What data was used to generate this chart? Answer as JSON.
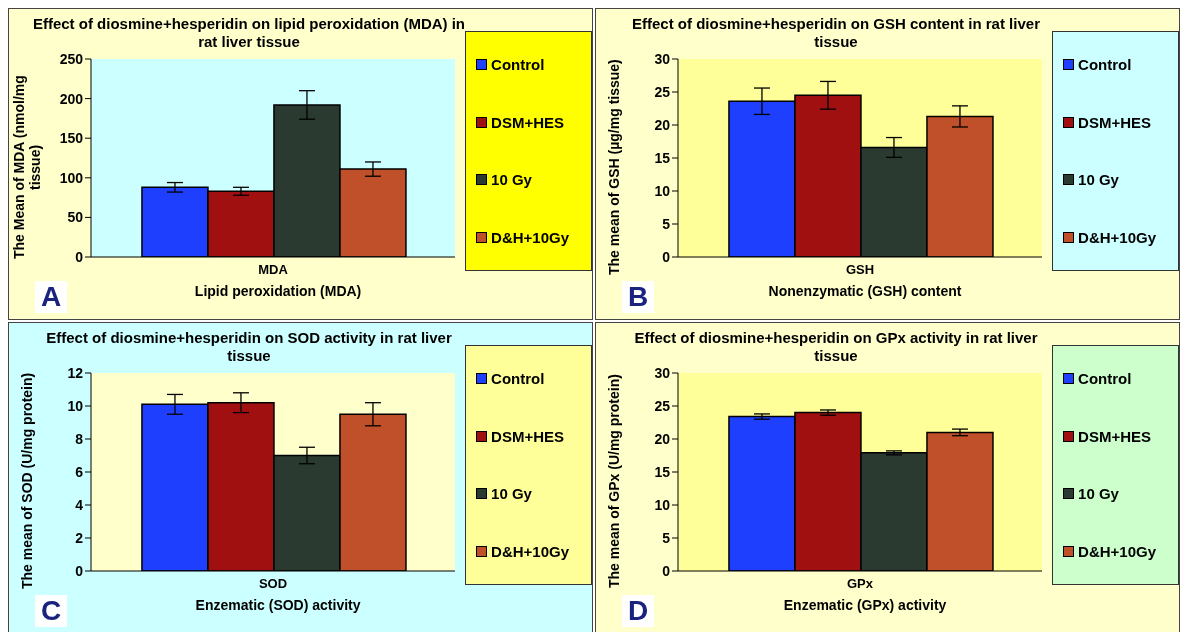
{
  "chart_data": [
    {
      "type": "bar",
      "title": "Effect of diosmine+hesperidin on lipid peroxidation (MDA) in rat liver tissue",
      "xlabel": "Lipid peroxidation (MDA)",
      "ylabel": "The Mean of MDA (nmol/mg tissue)",
      "categories": [
        "MDA"
      ],
      "ylim": [
        0,
        250
      ],
      "yticks": [
        0,
        50,
        100,
        150,
        200,
        250
      ],
      "grid": false,
      "legend": "right",
      "annotations": [
        "A"
      ],
      "series": [
        {
          "name": "Control",
          "color": "#1f3fff",
          "values": [
            88
          ],
          "errors": [
            6
          ]
        },
        {
          "name": "DSM+HES",
          "color": "#a01010",
          "values": [
            83
          ],
          "errors": [
            5
          ]
        },
        {
          "name": "10 Gy",
          "color": "#2b3a30",
          "values": [
            192
          ],
          "errors": [
            18
          ]
        },
        {
          "name": "D&H+10Gy",
          "color": "#c0502a",
          "values": [
            111
          ],
          "errors": [
            9
          ]
        }
      ]
    },
    {
      "type": "bar",
      "title": "Effect of diosmine+hesperidin on GSH content in rat liver tissue",
      "xlabel": "Nonenzymatic (GSH) content",
      "ylabel": "The mean of GSH (µg/mg tissue)",
      "categories": [
        "GSH"
      ],
      "ylim": [
        0,
        30
      ],
      "yticks": [
        0,
        5,
        10,
        15,
        20,
        25,
        30
      ],
      "grid": false,
      "legend": "right",
      "annotations": [
        "B"
      ],
      "series": [
        {
          "name": "Control",
          "color": "#1f3fff",
          "values": [
            23.6
          ],
          "errors": [
            2
          ]
        },
        {
          "name": "DSM+HES",
          "color": "#a01010",
          "values": [
            24.5
          ],
          "errors": [
            2.1
          ]
        },
        {
          "name": "10 Gy",
          "color": "#2b3a30",
          "values": [
            16.6
          ],
          "errors": [
            1.5
          ]
        },
        {
          "name": "D&H+10Gy",
          "color": "#c0502a",
          "values": [
            21.3
          ],
          "errors": [
            1.6
          ]
        }
      ]
    },
    {
      "type": "bar",
      "title": "Effect of diosmine+hesperidin on SOD activity in rat liver tissue",
      "xlabel": "Enzematic (SOD) activity",
      "ylabel": "The mean of SOD (U/mg protein)",
      "categories": [
        "SOD"
      ],
      "ylim": [
        0,
        12
      ],
      "yticks": [
        0,
        2,
        4,
        6,
        8,
        10,
        12
      ],
      "grid": false,
      "legend": "right",
      "annotations": [
        "C"
      ],
      "series": [
        {
          "name": "Control",
          "color": "#1f3fff",
          "values": [
            10.1
          ],
          "errors": [
            0.6
          ]
        },
        {
          "name": "DSM+HES",
          "color": "#a01010",
          "values": [
            10.2
          ],
          "errors": [
            0.6
          ]
        },
        {
          "name": "10 Gy",
          "color": "#2b3a30",
          "values": [
            7.0
          ],
          "errors": [
            0.5
          ]
        },
        {
          "name": "D&H+10Gy",
          "color": "#c0502a",
          "values": [
            9.5
          ],
          "errors": [
            0.7
          ]
        }
      ]
    },
    {
      "type": "bar",
      "title": "Effect of diosmine+hesperidin on GPx activity in rat liver tissue",
      "xlabel": "Enzematic (GPx) activity",
      "ylabel": "The mean of GPx (U/mg protein)",
      "categories": [
        "GPx"
      ],
      "ylim": [
        0,
        30
      ],
      "yticks": [
        0,
        5,
        10,
        15,
        20,
        25,
        30
      ],
      "grid": false,
      "legend": "right",
      "annotations": [
        "D"
      ],
      "series": [
        {
          "name": "Control",
          "color": "#1f3fff",
          "values": [
            23.4
          ],
          "errors": [
            0.4
          ]
        },
        {
          "name": "DSM+HES",
          "color": "#a01010",
          "values": [
            24.0
          ],
          "errors": [
            0.4
          ]
        },
        {
          "name": "10 Gy",
          "color": "#2b3a30",
          "values": [
            17.9
          ],
          "errors": [
            0.3
          ]
        },
        {
          "name": "D&H+10Gy",
          "color": "#c0502a",
          "values": [
            21.0
          ],
          "errors": [
            0.5
          ]
        }
      ]
    }
  ]
}
